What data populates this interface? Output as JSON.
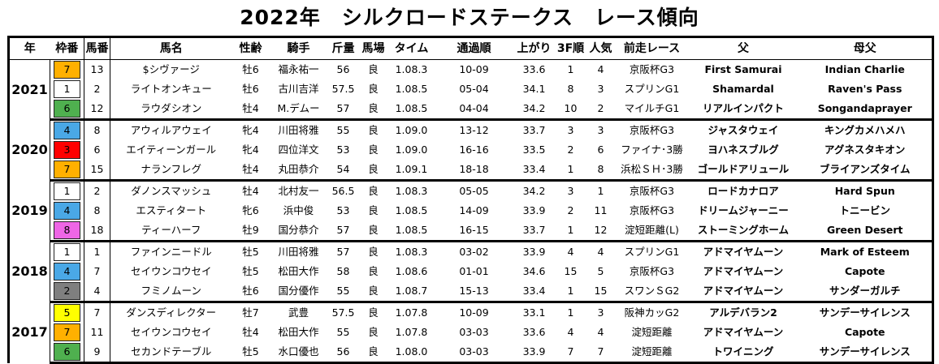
{
  "title": "2022年　シルクロードステークス　レース傾向",
  "headers": [
    "年",
    "枠番",
    "馬番",
    "馬名",
    "性齢",
    "騎手",
    "斤量",
    "馬場",
    "タイム",
    "通過順",
    "上がり",
    "3F順",
    "人気",
    "前走レース",
    "父",
    "母父"
  ],
  "groups": [
    {
      "year": "2021",
      "rows": [
        {
          "waku": "7",
          "umaban": "13",
          "name": "$シヴァージ",
          "seiryo": "牡6",
          "jockey": "福永祐一",
          "kinryo": "56",
          "baba": "良",
          "time": "1.08.3",
          "tsuka": "10-09",
          "agari": "33.6",
          "f3": "1",
          "ninki": "4",
          "zenso": "京阪杯G3",
          "chichi": "First Samurai",
          "hahachichi": "Indian Charlie"
        },
        {
          "waku": "1",
          "umaban": "2",
          "name": "ライトオンキュー",
          "seiryo": "牡6",
          "jockey": "古川吉洋",
          "kinryo": "57.5",
          "baba": "良",
          "time": "1.08.5",
          "tsuka": "05-04",
          "agari": "34.1",
          "f3": "8",
          "ninki": "3",
          "zenso": "スプリンG1",
          "chichi": "Shamardal",
          "hahachichi": "Raven's Pass"
        },
        {
          "waku": "6",
          "umaban": "12",
          "name": "ラウダシオン",
          "seiryo": "牡4",
          "jockey": "M.デムー",
          "kinryo": "57",
          "baba": "良",
          "time": "1.08.5",
          "tsuka": "04-04",
          "agari": "34.2",
          "f3": "10",
          "ninki": "2",
          "zenso": "マイルチG1",
          "chichi": "リアルインパクト",
          "hahachichi": "Songandaprayer"
        }
      ]
    },
    {
      "year": "2020",
      "rows": [
        {
          "waku": "4",
          "umaban": "8",
          "name": "アウィルアウェイ",
          "seiryo": "牝4",
          "jockey": "川田将雅",
          "kinryo": "55",
          "baba": "良",
          "time": "1.09.0",
          "tsuka": "13-12",
          "agari": "33.7",
          "f3": "3",
          "ninki": "3",
          "zenso": "京阪杯G3",
          "chichi": "ジャスタウェイ",
          "hahachichi": "キングカメハメハ"
        },
        {
          "waku": "3",
          "umaban": "6",
          "name": "エイティーンガール",
          "seiryo": "牝4",
          "jockey": "四位洋文",
          "kinryo": "53",
          "baba": "良",
          "time": "1.09.0",
          "tsuka": "16-16",
          "agari": "33.5",
          "f3": "2",
          "ninki": "6",
          "zenso": "ファイナ･3勝",
          "chichi": "ヨハネスブルグ",
          "hahachichi": "アグネスタキオン"
        },
        {
          "waku": "7",
          "umaban": "15",
          "name": "ナランフレグ",
          "seiryo": "牡4",
          "jockey": "丸田恭介",
          "kinryo": "54",
          "baba": "良",
          "time": "1.09.1",
          "tsuka": "18-18",
          "agari": "33.4",
          "f3": "1",
          "ninki": "8",
          "zenso": "浜松ＳＨ･3勝",
          "chichi": "ゴールドアリュール",
          "hahachichi": "ブライアンズタイム"
        }
      ]
    },
    {
      "year": "2019",
      "rows": [
        {
          "waku": "1",
          "umaban": "2",
          "name": "ダノンスマッシュ",
          "seiryo": "牡4",
          "jockey": "北村友一",
          "kinryo": "56.5",
          "baba": "良",
          "time": "1.08.3",
          "tsuka": "05-05",
          "agari": "34.2",
          "f3": "3",
          "ninki": "1",
          "zenso": "京阪杯G3",
          "chichi": "ロードカナロア",
          "hahachichi": "Hard Spun"
        },
        {
          "waku": "4",
          "umaban": "8",
          "name": "エスティタート",
          "seiryo": "牝6",
          "jockey": "浜中俊",
          "kinryo": "53",
          "baba": "良",
          "time": "1.08.5",
          "tsuka": "14-09",
          "agari": "33.9",
          "f3": "2",
          "ninki": "11",
          "zenso": "京阪杯G3",
          "chichi": "ドリームジャーニー",
          "hahachichi": "トニービン"
        },
        {
          "waku": "8",
          "umaban": "18",
          "name": "ティーハーフ",
          "seiryo": "牡9",
          "jockey": "国分恭介",
          "kinryo": "57",
          "baba": "良",
          "time": "1.08.5",
          "tsuka": "16-15",
          "agari": "33.7",
          "f3": "1",
          "ninki": "12",
          "zenso": "淀短距離(L)",
          "chichi": "ストーミングホーム",
          "hahachichi": "Green Desert"
        }
      ]
    },
    {
      "year": "2018",
      "rows": [
        {
          "waku": "1",
          "umaban": "1",
          "name": "ファインニードル",
          "seiryo": "牡5",
          "jockey": "川田将雅",
          "kinryo": "57",
          "baba": "良",
          "time": "1.08.3",
          "tsuka": "03-02",
          "agari": "33.9",
          "f3": "4",
          "ninki": "4",
          "zenso": "スプリンG1",
          "chichi": "アドマイヤムーン",
          "hahachichi": "Mark of Esteem"
        },
        {
          "waku": "4",
          "umaban": "7",
          "name": "セイウンコウセイ",
          "seiryo": "牡5",
          "jockey": "松田大作",
          "kinryo": "58",
          "baba": "良",
          "time": "1.08.6",
          "tsuka": "01-01",
          "agari": "34.6",
          "f3": "15",
          "ninki": "5",
          "zenso": "京阪杯G3",
          "chichi": "アドマイヤムーン",
          "hahachichi": "Capote"
        },
        {
          "waku": "2",
          "umaban": "4",
          "name": "フミノムーン",
          "seiryo": "牡6",
          "jockey": "国分優作",
          "kinryo": "55",
          "baba": "良",
          "time": "1.08.7",
          "tsuka": "15-13",
          "agari": "33.4",
          "f3": "1",
          "ninki": "15",
          "zenso": "スワンＳG2",
          "chichi": "アドマイヤムーン",
          "hahachichi": "サンダーガルチ"
        }
      ]
    },
    {
      "year": "2017",
      "rows": [
        {
          "waku": "5",
          "umaban": "7",
          "name": "ダンスディレクター",
          "seiryo": "牡7",
          "jockey": "武豊",
          "kinryo": "57.5",
          "baba": "良",
          "time": "1.07.8",
          "tsuka": "10-09",
          "agari": "33.1",
          "f3": "1",
          "ninki": "3",
          "zenso": "阪神カッG2",
          "chichi": "アルデバラン2",
          "hahachichi": "サンデーサイレンス"
        },
        {
          "waku": "7",
          "umaban": "11",
          "name": "セイウンコウセイ",
          "seiryo": "牡4",
          "jockey": "松田大作",
          "kinryo": "55",
          "baba": "良",
          "time": "1.07.8",
          "tsuka": "03-03",
          "agari": "33.6",
          "f3": "4",
          "ninki": "4",
          "zenso": "淀短距離",
          "chichi": "アドマイヤムーン",
          "hahachichi": "Capote"
        },
        {
          "waku": "6",
          "umaban": "9",
          "name": "セカンドテーブル",
          "seiryo": "牡5",
          "jockey": "水口優也",
          "kinryo": "56",
          "baba": "良",
          "time": "1.08.0",
          "tsuka": "03-03",
          "agari": "33.9",
          "f3": "7",
          "ninki": "7",
          "zenso": "淀短距離",
          "chichi": "トワイニング",
          "hahachichi": "サンデーサイレンス"
        }
      ]
    }
  ]
}
